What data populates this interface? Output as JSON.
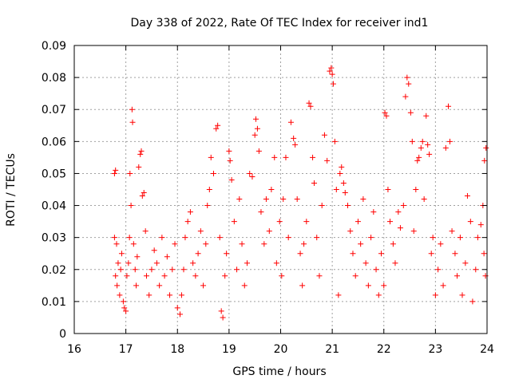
{
  "chart_data": {
    "type": "scatter",
    "title": "Day 338 of 2022, Rate Of TEC Index for receiver ind1",
    "xlabel": "GPS time / hours",
    "ylabel": "ROTI / TECUs",
    "xlim": [
      16,
      24
    ],
    "ylim": [
      0,
      0.09
    ],
    "x_ticks": [
      "16",
      "17",
      "18",
      "19",
      "20",
      "21",
      "22",
      "23",
      "24"
    ],
    "y_ticks": [
      "0",
      "0.01",
      "0.02",
      "0.03",
      "0.04",
      "0.05",
      "0.06",
      "0.07",
      "0.08",
      "0.09"
    ],
    "grid": true,
    "marker": "+",
    "color": "#ff0000",
    "series": [
      {
        "points": [
          [
            16.78,
            0.05
          ],
          [
            16.8,
            0.051
          ],
          [
            16.78,
            0.03
          ],
          [
            16.82,
            0.028
          ],
          [
            16.85,
            0.022
          ],
          [
            16.8,
            0.018
          ],
          [
            16.83,
            0.015
          ],
          [
            16.88,
            0.012
          ],
          [
            16.9,
            0.02
          ],
          [
            16.92,
            0.025
          ],
          [
            16.95,
            0.01
          ],
          [
            16.97,
            0.008
          ],
          [
            17.0,
            0.007
          ],
          [
            17.02,
            0.018
          ],
          [
            17.05,
            0.022
          ],
          [
            17.07,
            0.03
          ],
          [
            17.08,
            0.05
          ],
          [
            17.1,
            0.04
          ],
          [
            17.12,
            0.07
          ],
          [
            17.13,
            0.066
          ],
          [
            17.15,
            0.028
          ],
          [
            17.18,
            0.02
          ],
          [
            17.2,
            0.015
          ],
          [
            17.22,
            0.024
          ],
          [
            17.25,
            0.052
          ],
          [
            17.28,
            0.056
          ],
          [
            17.3,
            0.057
          ],
          [
            17.32,
            0.043
          ],
          [
            17.35,
            0.044
          ],
          [
            17.38,
            0.032
          ],
          [
            17.4,
            0.018
          ],
          [
            17.45,
            0.012
          ],
          [
            17.5,
            0.02
          ],
          [
            17.55,
            0.026
          ],
          [
            17.6,
            0.022
          ],
          [
            17.65,
            0.015
          ],
          [
            17.7,
            0.03
          ],
          [
            17.75,
            0.018
          ],
          [
            17.8,
            0.024
          ],
          [
            17.85,
            0.012
          ],
          [
            17.9,
            0.02
          ],
          [
            17.95,
            0.028
          ],
          [
            18.0,
            0.008
          ],
          [
            18.05,
            0.006
          ],
          [
            18.08,
            0.012
          ],
          [
            18.12,
            0.02
          ],
          [
            18.15,
            0.03
          ],
          [
            18.2,
            0.035
          ],
          [
            18.25,
            0.038
          ],
          [
            18.3,
            0.022
          ],
          [
            18.35,
            0.018
          ],
          [
            18.4,
            0.025
          ],
          [
            18.45,
            0.032
          ],
          [
            18.5,
            0.015
          ],
          [
            18.55,
            0.028
          ],
          [
            18.58,
            0.04
          ],
          [
            18.62,
            0.045
          ],
          [
            18.65,
            0.055
          ],
          [
            18.7,
            0.05
          ],
          [
            18.75,
            0.064
          ],
          [
            18.78,
            0.065
          ],
          [
            18.82,
            0.03
          ],
          [
            18.85,
            0.007
          ],
          [
            18.88,
            0.005
          ],
          [
            18.92,
            0.018
          ],
          [
            18.95,
            0.025
          ],
          [
            19.0,
            0.057
          ],
          [
            19.02,
            0.054
          ],
          [
            19.05,
            0.048
          ],
          [
            19.1,
            0.035
          ],
          [
            19.15,
            0.02
          ],
          [
            19.2,
            0.042
          ],
          [
            19.25,
            0.028
          ],
          [
            19.3,
            0.015
          ],
          [
            19.35,
            0.022
          ],
          [
            19.4,
            0.05
          ],
          [
            19.45,
            0.049
          ],
          [
            19.5,
            0.062
          ],
          [
            19.52,
            0.067
          ],
          [
            19.55,
            0.064
          ],
          [
            19.58,
            0.057
          ],
          [
            19.62,
            0.038
          ],
          [
            19.68,
            0.028
          ],
          [
            19.72,
            0.042
          ],
          [
            19.78,
            0.032
          ],
          [
            19.82,
            0.045
          ],
          [
            19.88,
            0.055
          ],
          [
            19.92,
            0.022
          ],
          [
            19.98,
            0.035
          ],
          [
            20.02,
            0.018
          ],
          [
            20.05,
            0.042
          ],
          [
            20.1,
            0.055
          ],
          [
            20.15,
            0.03
          ],
          [
            20.2,
            0.066
          ],
          [
            20.25,
            0.061
          ],
          [
            20.28,
            0.059
          ],
          [
            20.32,
            0.042
          ],
          [
            20.38,
            0.025
          ],
          [
            20.42,
            0.015
          ],
          [
            20.45,
            0.028
          ],
          [
            20.5,
            0.035
          ],
          [
            20.55,
            0.072
          ],
          [
            20.58,
            0.071
          ],
          [
            20.62,
            0.055
          ],
          [
            20.65,
            0.047
          ],
          [
            20.7,
            0.03
          ],
          [
            20.75,
            0.018
          ],
          [
            20.8,
            0.04
          ],
          [
            20.85,
            0.062
          ],
          [
            20.9,
            0.054
          ],
          [
            20.95,
            0.082
          ],
          [
            20.98,
            0.083
          ],
          [
            21.0,
            0.081
          ],
          [
            21.02,
            0.078
          ],
          [
            21.05,
            0.06
          ],
          [
            21.08,
            0.045
          ],
          [
            21.12,
            0.012
          ],
          [
            21.15,
            0.05
          ],
          [
            21.18,
            0.052
          ],
          [
            21.22,
            0.047
          ],
          [
            21.25,
            0.044
          ],
          [
            21.3,
            0.04
          ],
          [
            21.35,
            0.032
          ],
          [
            21.4,
            0.025
          ],
          [
            21.45,
            0.018
          ],
          [
            21.5,
            0.035
          ],
          [
            21.55,
            0.028
          ],
          [
            21.6,
            0.042
          ],
          [
            21.65,
            0.022
          ],
          [
            21.7,
            0.015
          ],
          [
            21.75,
            0.03
          ],
          [
            21.8,
            0.038
          ],
          [
            21.85,
            0.02
          ],
          [
            21.9,
            0.012
          ],
          [
            21.95,
            0.025
          ],
          [
            22.0,
            0.015
          ],
          [
            22.02,
            0.069
          ],
          [
            22.05,
            0.068
          ],
          [
            22.08,
            0.045
          ],
          [
            22.12,
            0.035
          ],
          [
            22.18,
            0.028
          ],
          [
            22.22,
            0.022
          ],
          [
            22.28,
            0.038
          ],
          [
            22.32,
            0.033
          ],
          [
            22.38,
            0.04
          ],
          [
            22.42,
            0.074
          ],
          [
            22.45,
            0.08
          ],
          [
            22.48,
            0.078
          ],
          [
            22.52,
            0.069
          ],
          [
            22.55,
            0.06
          ],
          [
            22.58,
            0.032
          ],
          [
            22.62,
            0.045
          ],
          [
            22.65,
            0.054
          ],
          [
            22.68,
            0.055
          ],
          [
            22.72,
            0.058
          ],
          [
            22.75,
            0.06
          ],
          [
            22.78,
            0.042
          ],
          [
            22.82,
            0.068
          ],
          [
            22.85,
            0.059
          ],
          [
            22.88,
            0.056
          ],
          [
            22.92,
            0.025
          ],
          [
            22.95,
            0.03
          ],
          [
            23.0,
            0.012
          ],
          [
            23.05,
            0.02
          ],
          [
            23.1,
            0.028
          ],
          [
            23.15,
            0.015
          ],
          [
            23.2,
            0.058
          ],
          [
            23.25,
            0.071
          ],
          [
            23.28,
            0.06
          ],
          [
            23.32,
            0.032
          ],
          [
            23.38,
            0.025
          ],
          [
            23.42,
            0.018
          ],
          [
            23.48,
            0.03
          ],
          [
            23.52,
            0.012
          ],
          [
            23.58,
            0.022
          ],
          [
            23.62,
            0.043
          ],
          [
            23.68,
            0.035
          ],
          [
            23.72,
            0.01
          ],
          [
            23.78,
            0.02
          ],
          [
            23.82,
            0.03
          ],
          [
            23.88,
            0.034
          ],
          [
            23.92,
            0.04
          ],
          [
            23.95,
            0.054
          ],
          [
            23.98,
            0.058
          ],
          [
            23.97,
            0.018
          ],
          [
            23.94,
            0.025
          ]
        ]
      }
    ]
  }
}
